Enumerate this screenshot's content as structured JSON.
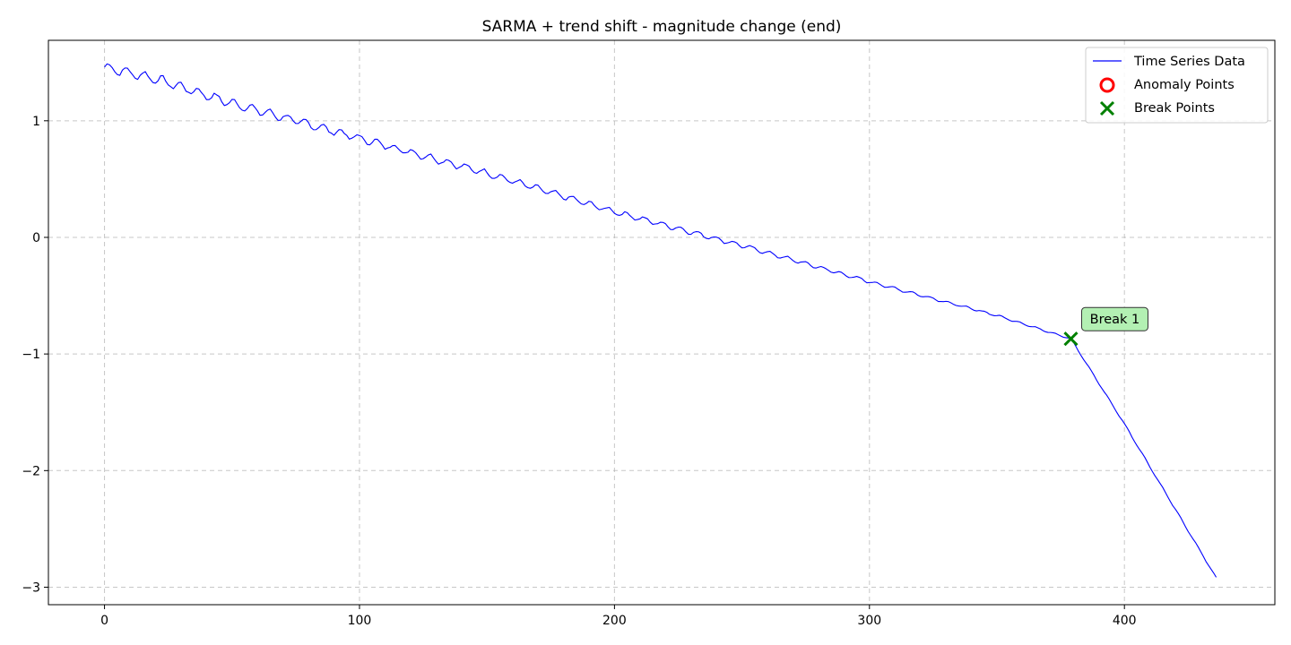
{
  "chart_data": {
    "type": "line",
    "title": "SARMA + trend shift - magnitude change (end)",
    "xlabel": "",
    "ylabel": "",
    "xlim": [
      -22,
      459
    ],
    "ylim": [
      -3.15,
      1.69
    ],
    "xticks": [
      0,
      100,
      200,
      300,
      400
    ],
    "yticks": [
      -3,
      -2,
      -1,
      0,
      1
    ],
    "ytick_labels": [
      "−3",
      "−2",
      "−1",
      "0",
      "1"
    ],
    "grid": true,
    "legend_position": "top-right",
    "legend": [
      {
        "label": "Time Series Data",
        "marker": "line"
      },
      {
        "label": "Anomaly Points",
        "marker": "circle"
      },
      {
        "label": "Break Points",
        "marker": "x"
      }
    ],
    "colors": {
      "series": "#0000ff",
      "anomaly": "#ff0000",
      "break": "#008000",
      "annotation_bg": "#b3f0b3"
    },
    "series": [
      {
        "name": "Time Series Data",
        "x_start": 0,
        "x_end": 436,
        "trend_knots": [
          [
            0,
            1.46
          ],
          [
            20,
            1.36
          ],
          [
            50,
            1.15
          ],
          [
            100,
            0.85
          ],
          [
            150,
            0.55
          ],
          [
            200,
            0.22
          ],
          [
            250,
            -0.07
          ],
          [
            300,
            -0.38
          ],
          [
            350,
            -0.67
          ],
          [
            379,
            -0.87
          ],
          [
            400,
            -1.6
          ],
          [
            436,
            -2.92
          ]
        ],
        "seasonal_amplitude_start": 0.04,
        "seasonal_amplitude_end": 0.006,
        "seasonal_period": 7
      }
    ],
    "anomaly_points": [],
    "break_points": [
      {
        "x": 379,
        "y": -0.87,
        "label": "Break 1"
      }
    ]
  }
}
